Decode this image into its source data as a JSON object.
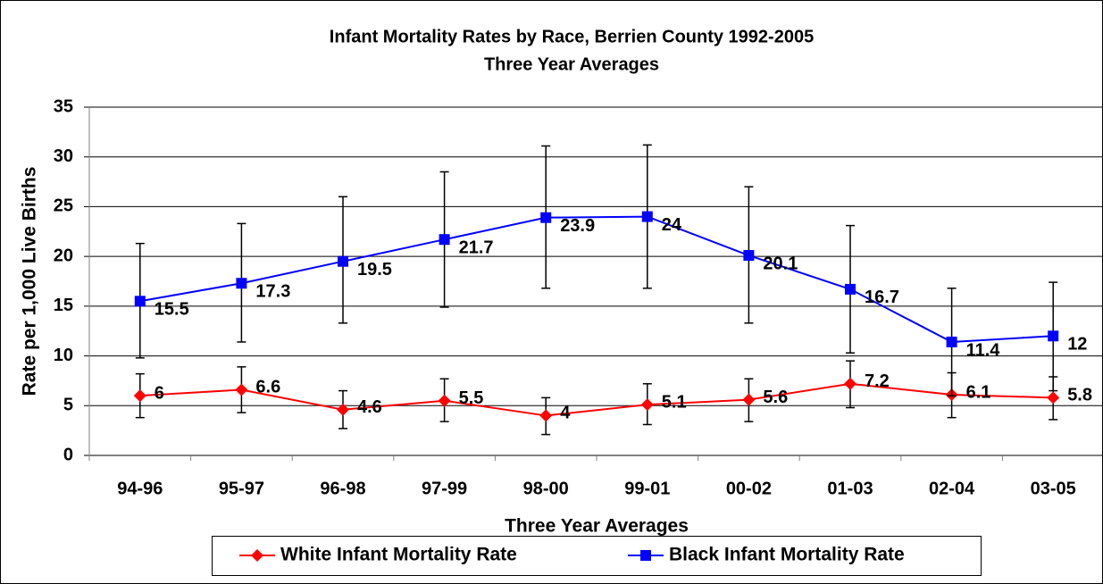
{
  "chart_data": {
    "type": "line",
    "title": "Infant Mortality Rates by Race, Berrien County 1992-2005",
    "subtitle": "Three Year Averages",
    "x_label": "Three Year Averages",
    "y_label": "Rate per 1,000 Live Births",
    "categories": [
      "94-96",
      "95-97",
      "96-98",
      "97-99",
      "98-00",
      "99-01",
      "00-02",
      "01-03",
      "02-04",
      "03-05"
    ],
    "series": [
      {
        "name": "White Infant Mortality Rate",
        "color": "#ff0000",
        "marker": "diamond",
        "values": [
          6,
          6.6,
          4.6,
          5.5,
          4,
          5.1,
          5.6,
          7.2,
          6.1,
          5.8
        ],
        "lower": [
          3.8,
          4.3,
          2.7,
          3.4,
          2.1,
          3.1,
          3.4,
          4.8,
          3.8,
          3.6
        ],
        "upper": [
          8.2,
          8.9,
          6.5,
          7.7,
          5.8,
          7.2,
          7.7,
          9.5,
          8.3,
          7.9
        ]
      },
      {
        "name": "Black Infant Mortality Rate",
        "color": "#0000ff",
        "marker": "square",
        "values": [
          15.5,
          17.3,
          19.5,
          21.7,
          23.9,
          24,
          20.1,
          16.7,
          11.4,
          12
        ],
        "lower": [
          9.8,
          11.4,
          13.3,
          14.9,
          16.8,
          16.8,
          13.3,
          10.3,
          6.0,
          6.5
        ],
        "upper": [
          21.3,
          23.3,
          26.0,
          28.5,
          31.1,
          31.2,
          27.0,
          23.1,
          16.8,
          17.4
        ]
      }
    ],
    "ylim": [
      0,
      35
    ],
    "yticks": [
      0,
      5,
      10,
      15,
      20,
      25,
      30,
      35
    ],
    "grid": true,
    "legend": "bottom"
  }
}
